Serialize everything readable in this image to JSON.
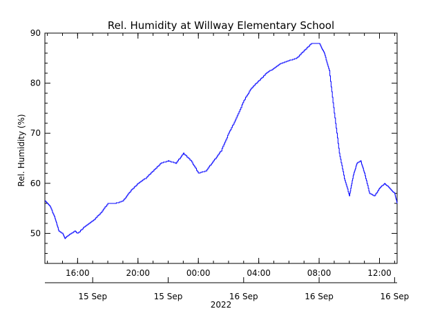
{
  "chart_data": {
    "type": "line",
    "title": "Rel. Humidity at Willway Elementary School",
    "ylabel": "Rel. Humidity (%)",
    "xlabel": "2022",
    "ylim": [
      44,
      90
    ],
    "xlim": [
      "2022-09-15 13:50",
      "2022-09-16 13:10"
    ],
    "y_ticks": [
      50,
      60,
      70,
      80,
      90
    ],
    "x_ticks_time": [
      {
        "t": "2022-09-15 16:00",
        "label": "16:00"
      },
      {
        "t": "2022-09-15 20:00",
        "label": "20:00"
      },
      {
        "t": "2022-09-16 00:00",
        "label": "00:00"
      },
      {
        "t": "2022-09-16 04:00",
        "label": "04:00"
      },
      {
        "t": "2022-09-16 08:00",
        "label": "08:00"
      },
      {
        "t": "2022-09-16 12:00",
        "label": "12:00"
      }
    ],
    "x_ticks_date": [
      {
        "t": "2022-09-15 17:00",
        "label": "15 Sep"
      },
      {
        "t": "2022-09-15 22:00",
        "label": "15 Sep"
      },
      {
        "t": "2022-09-16 03:00",
        "label": "16 Sep"
      },
      {
        "t": "2022-09-16 08:00",
        "label": "16 Sep"
      },
      {
        "t": "2022-09-16 13:00",
        "label": "16 Sep"
      }
    ],
    "grid": false,
    "line_color": "#0000ff",
    "series": [
      {
        "x": [
          "2022-09-15 13:50",
          "2022-09-15 14:10",
          "2022-09-15 14:30",
          "2022-09-15 14:45",
          "2022-09-15 15:00",
          "2022-09-15 15:10",
          "2022-09-15 15:20",
          "2022-09-15 15:35",
          "2022-09-15 15:50",
          "2022-09-15 16:00",
          "2022-09-15 16:30",
          "2022-09-15 17:00",
          "2022-09-15 17:30",
          "2022-09-15 18:00",
          "2022-09-15 18:30",
          "2022-09-15 19:00",
          "2022-09-15 19:30",
          "2022-09-15 20:00",
          "2022-09-15 20:30",
          "2022-09-15 21:00",
          "2022-09-15 21:30",
          "2022-09-15 22:00",
          "2022-09-15 22:30",
          "2022-09-15 23:00",
          "2022-09-15 23:30",
          "2022-09-16 00:00",
          "2022-09-16 00:30",
          "2022-09-16 01:00",
          "2022-09-16 01:30",
          "2022-09-16 02:00",
          "2022-09-16 02:30",
          "2022-09-16 03:00",
          "2022-09-16 03:30",
          "2022-09-16 04:00",
          "2022-09-16 04:30",
          "2022-09-16 05:00",
          "2022-09-16 05:30",
          "2022-09-16 06:00",
          "2022-09-16 06:30",
          "2022-09-16 07:00",
          "2022-09-16 07:30",
          "2022-09-16 08:00",
          "2022-09-16 08:20",
          "2022-09-16 08:40",
          "2022-09-16 09:00",
          "2022-09-16 09:20",
          "2022-09-16 09:40",
          "2022-09-16 10:00",
          "2022-09-16 10:15",
          "2022-09-16 10:30",
          "2022-09-16 10:45",
          "2022-09-16 11:00",
          "2022-09-16 11:20",
          "2022-09-16 11:40",
          "2022-09-16 12:00",
          "2022-09-16 12:20",
          "2022-09-16 12:40",
          "2022-09-16 13:00",
          "2022-09-16 13:10"
        ],
        "y": [
          56.5,
          55.5,
          53.0,
          50.5,
          50.0,
          49.0,
          49.5,
          50.0,
          50.5,
          50.0,
          51.5,
          52.5,
          54.0,
          56.0,
          56.0,
          56.5,
          58.5,
          60.0,
          61.0,
          62.5,
          64.0,
          64.5,
          64.0,
          66.0,
          64.5,
          62.0,
          62.5,
          64.5,
          66.5,
          70.0,
          73.0,
          76.5,
          79.0,
          80.5,
          82.0,
          83.0,
          84.0,
          84.5,
          85.0,
          86.5,
          88.0,
          88.0,
          86.0,
          82.5,
          74.0,
          66.0,
          61.0,
          57.5,
          61.5,
          64.0,
          64.5,
          62.0,
          58.0,
          57.5,
          59.0,
          60.0,
          59.0,
          58.0,
          56.0
        ]
      }
    ]
  }
}
